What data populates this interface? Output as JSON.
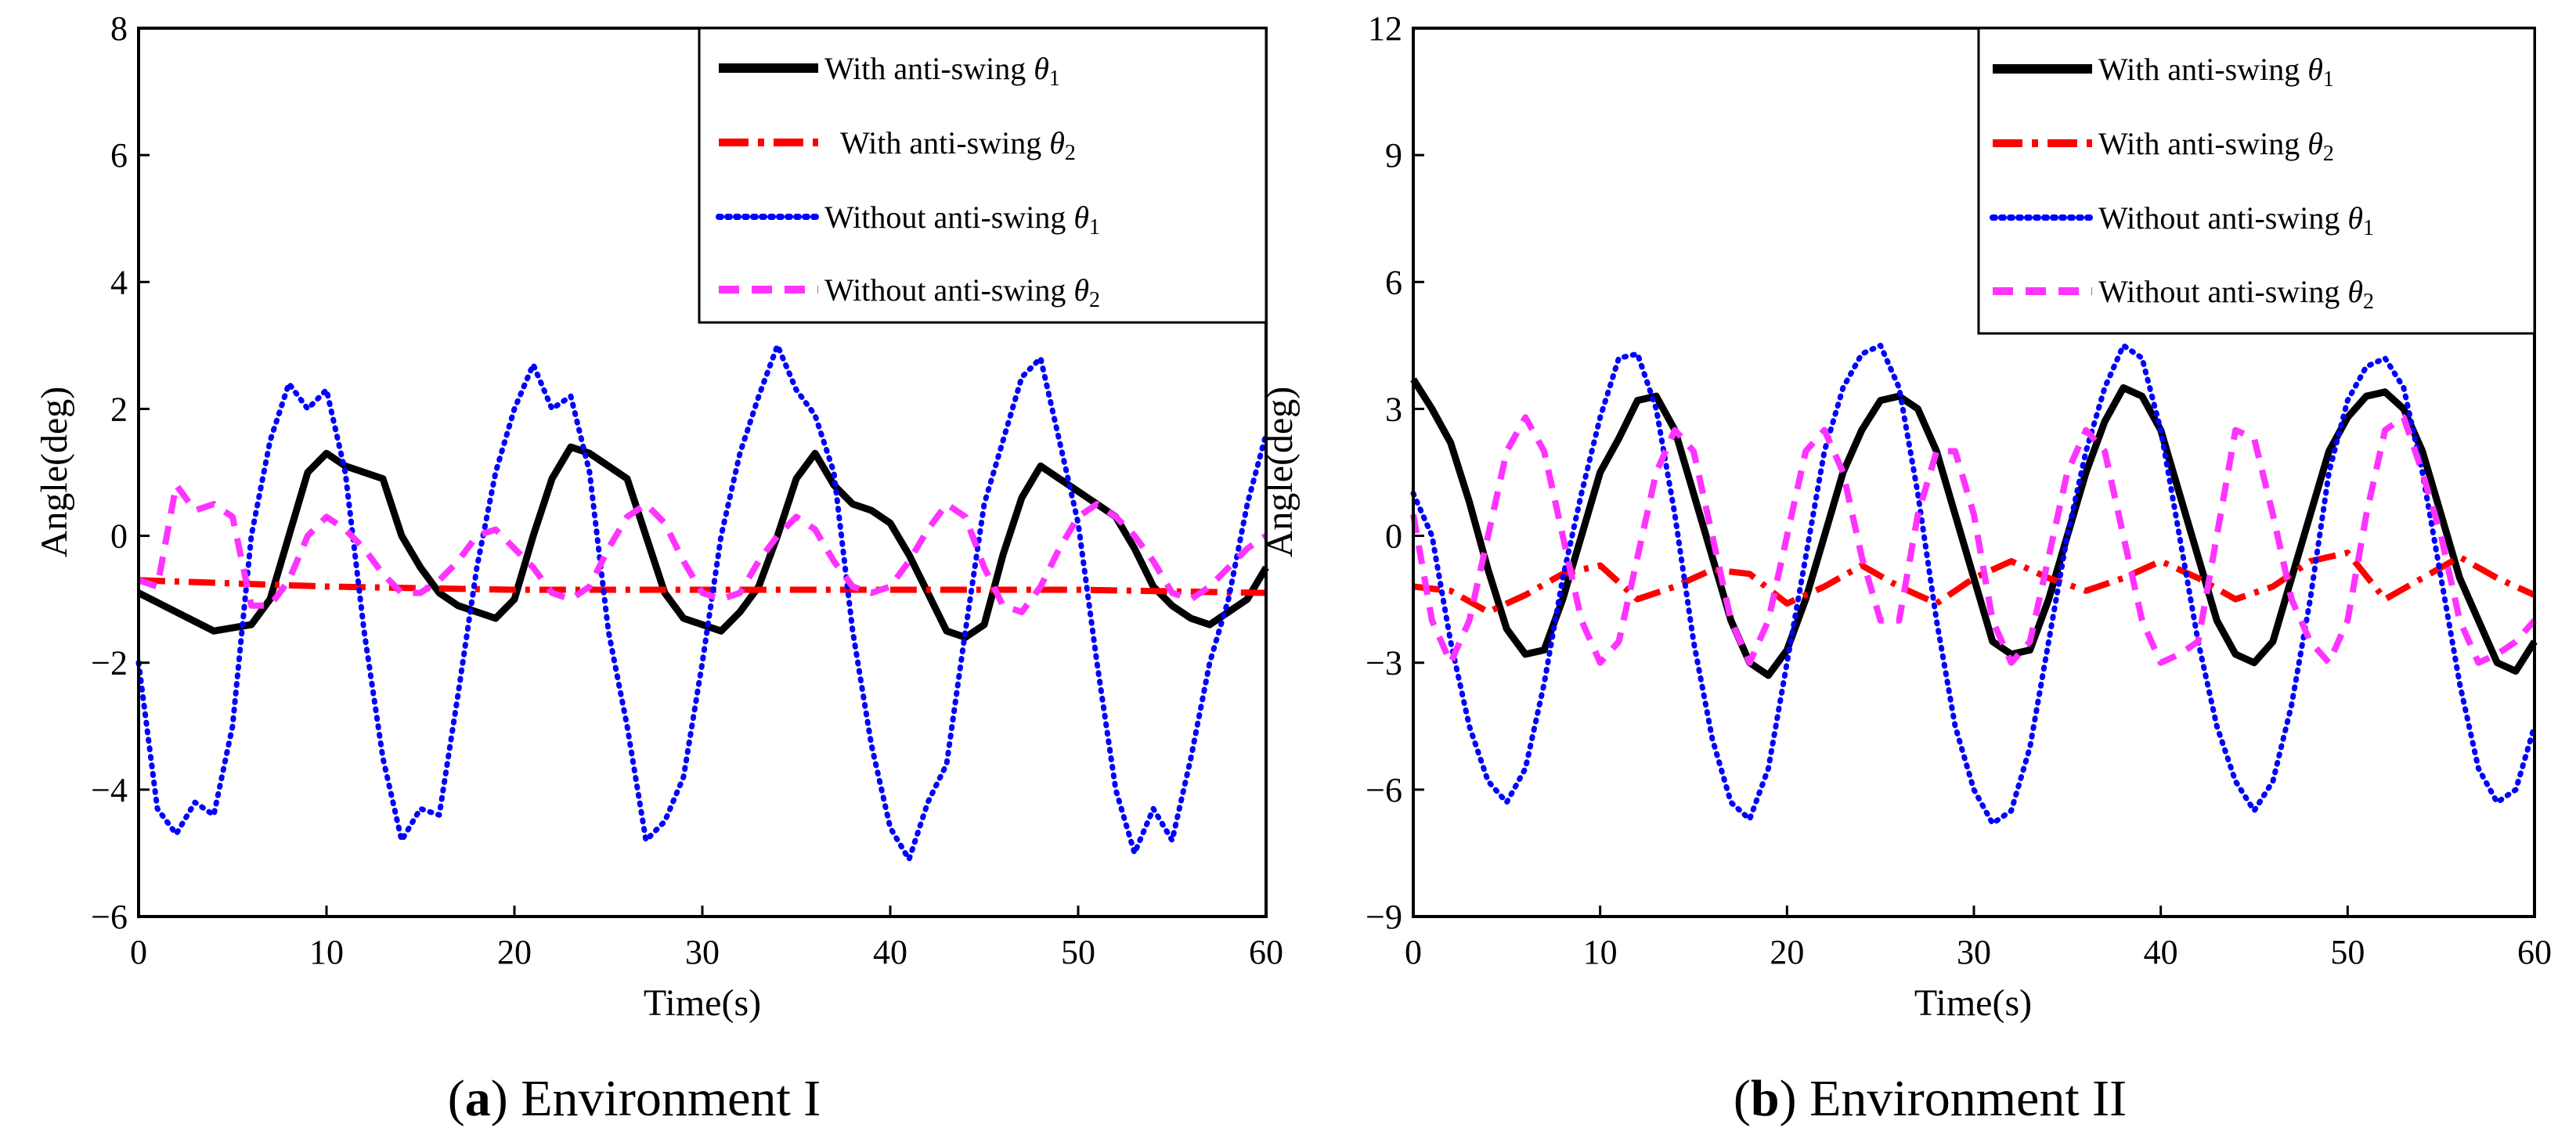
{
  "figure": {
    "panels": [
      {
        "caption_letter": "a",
        "caption_text": "Environment I",
        "xlabel": "Time(s)",
        "ylabel": "Angle(deg)",
        "xticks": [
          "0",
          "10",
          "20",
          "30",
          "40",
          "50",
          "60"
        ],
        "yticks": [
          "−6",
          "−4",
          "−2",
          "0",
          "2",
          "4",
          "6",
          "8"
        ],
        "legend": [
          {
            "label": "With anti-swing ",
            "symbol": "θ",
            "sub": "1"
          },
          {
            "label": "With anti-swing ",
            "symbol": "θ",
            "sub": "2"
          },
          {
            "label": "Without anti-swing ",
            "symbol": "θ",
            "sub": "1"
          },
          {
            "label": "Without anti-swing ",
            "symbol": "θ",
            "sub": "2"
          }
        ]
      },
      {
        "caption_letter": "b",
        "caption_text": "Environment II",
        "xlabel": "Time(s)",
        "ylabel": "Angle(deg)",
        "xticks": [
          "0",
          "10",
          "20",
          "30",
          "40",
          "50",
          "60"
        ],
        "yticks": [
          "−9",
          "−6",
          "−3",
          "0",
          "3",
          "6",
          "9",
          "12"
        ],
        "legend": [
          {
            "label": "With anti-swing ",
            "symbol": "θ",
            "sub": "1"
          },
          {
            "label": "With anti-swing ",
            "symbol": "θ",
            "sub": "2"
          },
          {
            "label": "Without anti-swing ",
            "symbol": "θ",
            "sub": "1"
          },
          {
            "label": "Without anti-swing ",
            "symbol": "θ",
            "sub": "2"
          }
        ]
      }
    ]
  },
  "chart_data": [
    {
      "type": "line",
      "title": "Environment I",
      "xlabel": "Time(s)",
      "ylabel": "Angle(deg)",
      "xlim": [
        0,
        60
      ],
      "ylim": [
        -6,
        8
      ],
      "legend_position": "top-right",
      "grid": false,
      "series": [
        {
          "name": "With anti-swing θ1",
          "color": "#000000",
          "style": "solid",
          "x": [
            0,
            2,
            4,
            6,
            7,
            8,
            9,
            10,
            11,
            12,
            13,
            14,
            15,
            16,
            17,
            18,
            19,
            20,
            21,
            22,
            23,
            24,
            25,
            26,
            27,
            28,
            29,
            30,
            31,
            32,
            33,
            34,
            35,
            36,
            37,
            38,
            39,
            40,
            41,
            42,
            43,
            44,
            45,
            46,
            47,
            48,
            49,
            50,
            51,
            52,
            53,
            54,
            55,
            56,
            57,
            58,
            59,
            60
          ],
          "y": [
            -0.9,
            -1.2,
            -1.5,
            -1.4,
            -1.0,
            0.0,
            1.0,
            1.3,
            1.1,
            1.0,
            0.9,
            0.0,
            -0.5,
            -0.9,
            -1.1,
            -1.2,
            -1.3,
            -1.0,
            0.0,
            0.9,
            1.4,
            1.3,
            1.1,
            0.9,
            0.0,
            -0.9,
            -1.3,
            -1.4,
            -1.5,
            -1.2,
            -0.8,
            0.0,
            0.9,
            1.3,
            0.8,
            0.5,
            0.4,
            0.2,
            -0.3,
            -0.9,
            -1.5,
            -1.6,
            -1.4,
            -0.3,
            0.6,
            1.1,
            0.9,
            0.7,
            0.5,
            0.3,
            -0.2,
            -0.8,
            -1.1,
            -1.3,
            -1.4,
            -1.2,
            -1.0,
            -0.5
          ]
        },
        {
          "name": "With anti-swing θ2",
          "color": "#ff0000",
          "style": "dashdot",
          "x": [
            0,
            10,
            20,
            30,
            40,
            50,
            60
          ],
          "y": [
            -0.7,
            -0.8,
            -0.85,
            -0.85,
            -0.85,
            -0.85,
            -0.9
          ]
        },
        {
          "name": "Without anti-swing θ1",
          "color": "#0000ff",
          "style": "dotted",
          "x": [
            0,
            1,
            2,
            3,
            4,
            5,
            6,
            7,
            8,
            9,
            10,
            11,
            12,
            13,
            14,
            15,
            16,
            17,
            18,
            19,
            20,
            21,
            22,
            23,
            24,
            25,
            26,
            27,
            28,
            29,
            30,
            31,
            32,
            33,
            34,
            35,
            36,
            37,
            38,
            39,
            40,
            41,
            42,
            43,
            44,
            45,
            46,
            47,
            48,
            49,
            50,
            51,
            52,
            53,
            54,
            55,
            56,
            57,
            58,
            59,
            60
          ],
          "y": [
            -2.0,
            -4.3,
            -4.7,
            -4.2,
            -4.4,
            -3.0,
            0.0,
            1.5,
            2.4,
            2.0,
            2.3,
            1.0,
            -1.5,
            -3.5,
            -4.8,
            -4.3,
            -4.4,
            -2.5,
            -0.5,
            1.0,
            2.0,
            2.7,
            2.0,
            2.2,
            1.0,
            -1.5,
            -3.0,
            -4.8,
            -4.5,
            -3.8,
            -2.0,
            0.0,
            1.3,
            2.2,
            3.0,
            2.3,
            1.9,
            1.0,
            -1.5,
            -3.3,
            -4.6,
            -5.1,
            -4.2,
            -3.6,
            -1.5,
            0.5,
            1.5,
            2.5,
            2.8,
            1.5,
            0.2,
            -2.0,
            -4.0,
            -5.0,
            -4.3,
            -4.8,
            -3.5,
            -2.0,
            -1.0,
            0.5,
            1.6
          ]
        },
        {
          "name": "Without anti-swing θ2",
          "color": "#ff33ff",
          "style": "dashed",
          "x": [
            0,
            1,
            2,
            3,
            4,
            5,
            6,
            7,
            8,
            9,
            10,
            11,
            12,
            13,
            14,
            15,
            16,
            17,
            18,
            19,
            20,
            21,
            22,
            23,
            24,
            25,
            26,
            27,
            28,
            29,
            30,
            31,
            32,
            33,
            34,
            35,
            36,
            37,
            38,
            39,
            40,
            41,
            42,
            43,
            44,
            45,
            46,
            47,
            48,
            49,
            50,
            51,
            52,
            53,
            54,
            55,
            56,
            57,
            58,
            59,
            60
          ],
          "y": [
            -0.7,
            -0.8,
            0.8,
            0.4,
            0.5,
            0.3,
            -1.1,
            -1.1,
            -0.7,
            0.0,
            0.3,
            0.1,
            -0.2,
            -0.6,
            -0.9,
            -0.9,
            -0.7,
            -0.4,
            0.0,
            0.1,
            -0.2,
            -0.5,
            -0.9,
            -1.0,
            -0.8,
            -0.2,
            0.3,
            0.5,
            0.2,
            -0.4,
            -0.9,
            -1.0,
            -0.9,
            -0.4,
            0.0,
            0.3,
            0.1,
            -0.4,
            -0.8,
            -0.9,
            -0.8,
            -0.4,
            0.1,
            0.5,
            0.3,
            -0.5,
            -1.1,
            -1.2,
            -0.8,
            -0.2,
            0.3,
            0.5,
            0.3,
            0.0,
            -0.4,
            -0.9,
            -1.0,
            -0.8,
            -0.5,
            -0.2,
            0.0
          ]
        }
      ]
    },
    {
      "type": "line",
      "title": "Environment II",
      "xlabel": "Time(s)",
      "ylabel": "Angle(deg)",
      "xlim": [
        0,
        60
      ],
      "ylim": [
        -9,
        12
      ],
      "legend_position": "top-right",
      "grid": false,
      "series": [
        {
          "name": "With anti-swing θ1",
          "color": "#000000",
          "style": "solid",
          "x": [
            0,
            1,
            2,
            3,
            4,
            5,
            6,
            7,
            8,
            9,
            10,
            11,
            12,
            13,
            14,
            15,
            16,
            17,
            18,
            19,
            20,
            21,
            22,
            23,
            24,
            25,
            26,
            27,
            28,
            29,
            30,
            31,
            32,
            33,
            34,
            35,
            36,
            37,
            38,
            39,
            40,
            41,
            42,
            43,
            44,
            45,
            46,
            47,
            48,
            49,
            50,
            51,
            52,
            53,
            54,
            55,
            56,
            57,
            58,
            59,
            60
          ],
          "y": [
            3.7,
            3.0,
            2.2,
            0.8,
            -0.8,
            -2.2,
            -2.8,
            -2.7,
            -1.5,
            0.0,
            1.5,
            2.3,
            3.2,
            3.3,
            2.5,
            1.0,
            -0.5,
            -2.0,
            -3.0,
            -3.3,
            -2.7,
            -1.5,
            0.0,
            1.5,
            2.5,
            3.2,
            3.3,
            3.0,
            2.0,
            0.5,
            -1.0,
            -2.5,
            -2.8,
            -2.7,
            -1.5,
            0.0,
            1.5,
            2.7,
            3.5,
            3.3,
            2.5,
            1.0,
            -0.5,
            -2.0,
            -2.8,
            -3.0,
            -2.5,
            -1.0,
            0.5,
            2.0,
            2.8,
            3.3,
            3.4,
            3.0,
            2.0,
            0.5,
            -1.0,
            -2.0,
            -3.0,
            -3.2,
            -2.5
          ]
        },
        {
          "name": "With anti-swing θ2",
          "color": "#ff0000",
          "style": "dashdot",
          "x": [
            0,
            2,
            4,
            6,
            8,
            10,
            12,
            14,
            16,
            18,
            20,
            22,
            24,
            26,
            28,
            30,
            32,
            34,
            36,
            38,
            40,
            42,
            44,
            46,
            48,
            50,
            52,
            54,
            56,
            58,
            60
          ],
          "y": [
            -1.2,
            -1.3,
            -1.8,
            -1.4,
            -0.9,
            -0.7,
            -1.5,
            -1.2,
            -0.8,
            -0.9,
            -1.6,
            -1.2,
            -0.7,
            -1.2,
            -1.6,
            -1.0,
            -0.6,
            -1.0,
            -1.3,
            -1.0,
            -0.6,
            -1.0,
            -1.5,
            -1.2,
            -0.6,
            -0.4,
            -1.5,
            -1.0,
            -0.5,
            -1.0,
            -1.4
          ]
        },
        {
          "name": "Without anti-swing θ1",
          "color": "#0000ff",
          "style": "dotted",
          "x": [
            0,
            1,
            2,
            3,
            4,
            5,
            6,
            7,
            8,
            9,
            10,
            11,
            12,
            13,
            14,
            15,
            16,
            17,
            18,
            19,
            20,
            21,
            22,
            23,
            24,
            25,
            26,
            27,
            28,
            29,
            30,
            31,
            32,
            33,
            34,
            35,
            36,
            37,
            38,
            39,
            40,
            41,
            42,
            43,
            44,
            45,
            46,
            47,
            48,
            49,
            50,
            51,
            52,
            53,
            54,
            55,
            56,
            57,
            58,
            59,
            60
          ],
          "y": [
            1.0,
            0.0,
            -2.5,
            -4.5,
            -5.8,
            -6.3,
            -5.5,
            -3.5,
            -1.0,
            1.0,
            2.8,
            4.2,
            4.3,
            3.0,
            0.5,
            -2.5,
            -4.8,
            -6.3,
            -6.7,
            -5.5,
            -3.0,
            -0.5,
            2.0,
            3.5,
            4.3,
            4.5,
            3.5,
            1.0,
            -2.0,
            -4.5,
            -6.0,
            -6.8,
            -6.5,
            -5.0,
            -2.5,
            0.0,
            2.0,
            3.5,
            4.5,
            4.2,
            2.5,
            0.0,
            -2.5,
            -4.5,
            -5.8,
            -6.5,
            -5.8,
            -4.0,
            -1.5,
            1.5,
            3.2,
            4.0,
            4.2,
            3.5,
            1.5,
            -1.0,
            -3.5,
            -5.5,
            -6.3,
            -6.0,
            -4.5
          ]
        },
        {
          "name": "Without anti-swing θ2",
          "color": "#ff33ff",
          "style": "dashed",
          "x": [
            0,
            1,
            2,
            3,
            4,
            5,
            6,
            7,
            8,
            9,
            10,
            11,
            12,
            13,
            14,
            15,
            16,
            17,
            18,
            19,
            20,
            21,
            22,
            23,
            24,
            25,
            26,
            27,
            28,
            29,
            30,
            31,
            32,
            33,
            34,
            35,
            36,
            37,
            38,
            39,
            40,
            41,
            42,
            43,
            44,
            45,
            46,
            47,
            48,
            49,
            50,
            51,
            52,
            53,
            54,
            55,
            56,
            57,
            58,
            59,
            60
          ],
          "y": [
            0.5,
            -2.0,
            -3.0,
            -2.0,
            0.0,
            2.0,
            2.8,
            2.0,
            0.0,
            -2.0,
            -3.0,
            -2.5,
            -0.5,
            1.5,
            2.5,
            2.0,
            0.0,
            -2.0,
            -3.0,
            -2.0,
            0.0,
            2.0,
            2.5,
            1.5,
            -0.5,
            -2.0,
            -2.0,
            0.5,
            2.0,
            2.0,
            0.5,
            -2.0,
            -3.0,
            -2.5,
            -0.5,
            1.5,
            2.5,
            2.0,
            0.0,
            -2.0,
            -3.0,
            -2.8,
            -2.5,
            0.0,
            2.5,
            2.3,
            0.5,
            -1.5,
            -2.5,
            -3.0,
            -2.0,
            0.5,
            2.5,
            2.8,
            1.5,
            0.0,
            -2.0,
            -3.0,
            -2.8,
            -2.5,
            -2.0
          ]
        }
      ]
    }
  ]
}
